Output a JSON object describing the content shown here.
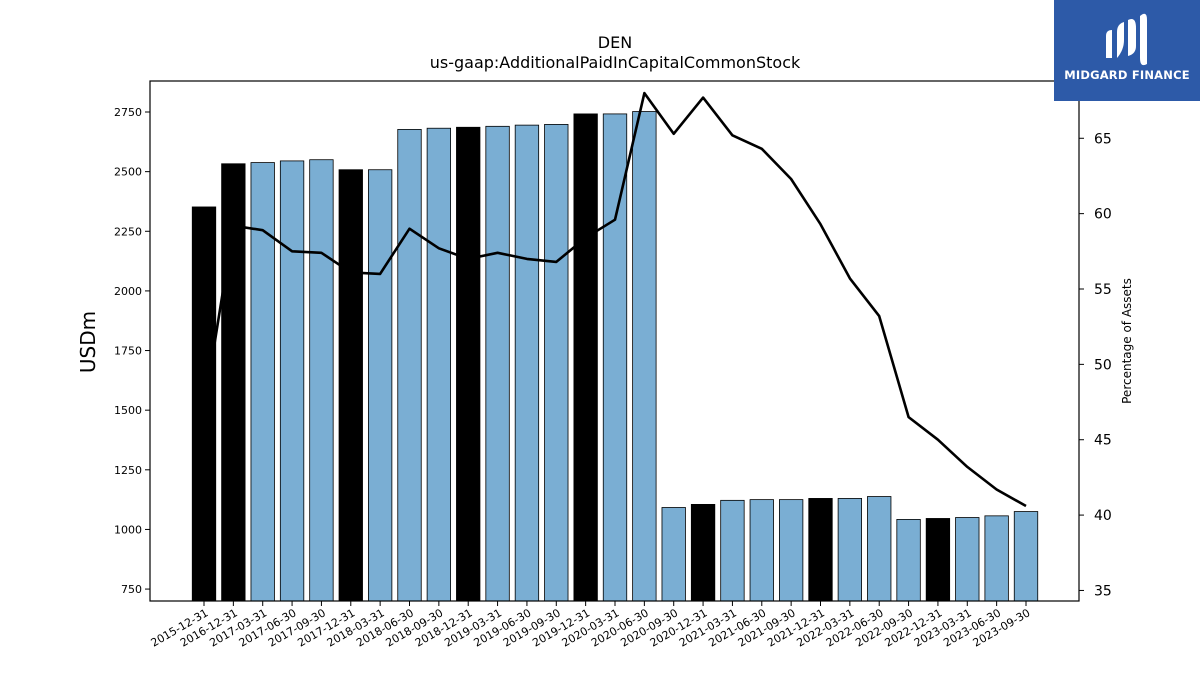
{
  "chart_data": {
    "type": "bar",
    "title": "DEN",
    "subtitle": "us-gaap:AdditionalPaidInCapitalCommonStock",
    "ylabel": "USDm",
    "y2label": "Percentage of Assets",
    "ylim": [
      700,
      2880
    ],
    "y2lim": [
      34.3,
      68.8
    ],
    "yticks": [
      750,
      1000,
      1250,
      1500,
      1750,
      2000,
      2250,
      2500,
      2750
    ],
    "y2ticks": [
      35,
      40,
      45,
      50,
      55,
      60,
      65
    ],
    "categories": [
      "2015-12-31",
      "2016-12-31",
      "2017-03-31",
      "2017-06-30",
      "2017-09-30",
      "2017-12-31",
      "2018-03-31",
      "2018-06-30",
      "2018-09-30",
      "2018-12-31",
      "2019-03-31",
      "2019-06-30",
      "2019-09-30",
      "2019-12-31",
      "2020-03-31",
      "2020-06-30",
      "2020-09-30",
      "2020-12-31",
      "2021-03-31",
      "2021-06-30",
      "2021-09-30",
      "2021-12-31",
      "2022-03-31",
      "2022-06-30",
      "2022-09-30",
      "2022-12-31",
      "2023-03-31",
      "2023-06-30",
      "2023-09-30"
    ],
    "series": [
      {
        "type": "bar",
        "values": [
          2352,
          2533,
          2538,
          2545,
          2550,
          2508,
          2508,
          2677,
          2682,
          2686,
          2690,
          2695,
          2698,
          2742,
          2742,
          2752,
          1092,
          1105,
          1122,
          1125,
          1125,
          1130,
          1130,
          1138,
          1042,
          1046,
          1050,
          1057,
          1075
        ]
      },
      {
        "type": "line",
        "axis": "right",
        "values": [
          47.0,
          59.2,
          58.9,
          57.5,
          57.4,
          56.1,
          56.0,
          59.0,
          57.7,
          57.0,
          57.4,
          57.0,
          56.8,
          58.4,
          59.6,
          68.0,
          65.3,
          67.7,
          65.2,
          64.3,
          62.3,
          59.3,
          55.7,
          53.2,
          46.5,
          45.0,
          43.2,
          41.7,
          40.6
        ]
      }
    ],
    "annual_bar_color": "#000000",
    "quarterly_bar_color": "#7aaed3",
    "line_color": "#000000",
    "grid": false
  },
  "logo": {
    "text": "MIDGARD FINANCE",
    "background": "#2d5aa8"
  }
}
